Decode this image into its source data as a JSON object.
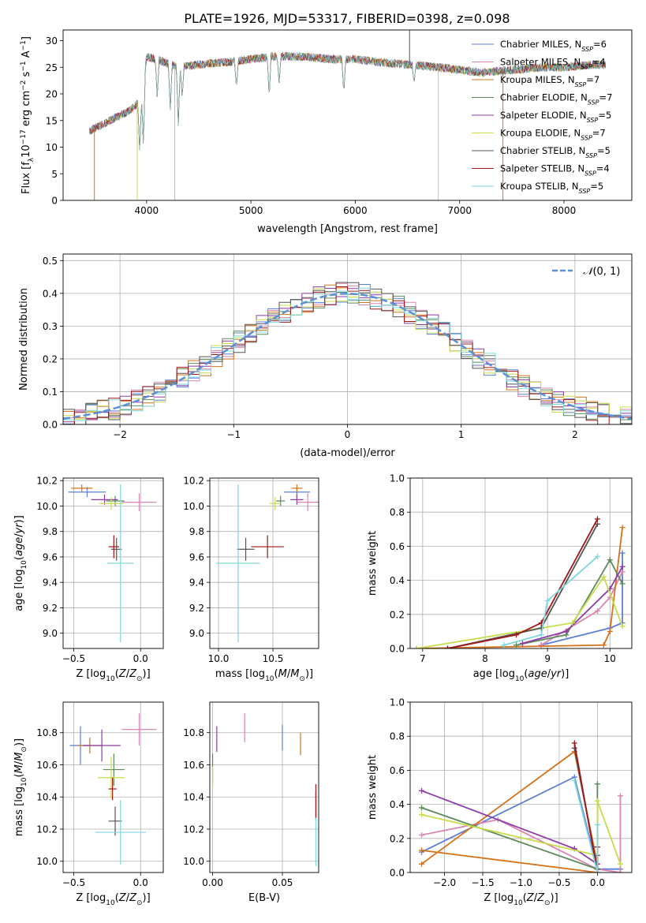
{
  "figure": {
    "title": "PLATE=1926, MJD=53317, FIBERID=0398, z=0.098"
  },
  "colors": {
    "Chabrier MILES": "#5b7fd6",
    "Salpeter MILES": "#d986b4",
    "Kroupa MILES": "#d4731c",
    "Chabrier ELODIE": "#5a8a5a",
    "Salpeter ELODIE": "#8e3ba8",
    "Kroupa ELODIE": "#c8dc4a",
    "Chabrier STELIB": "#555555",
    "Salpeter STELIB": "#a01616",
    "Kroupa STELIB": "#7dd6dc",
    "normal_curve": "#5b8fd6"
  },
  "chart_data": [
    {
      "id": "spectrum",
      "type": "line",
      "xlabel": "wavelength [Angstrom, rest frame]",
      "ylabel": "Flux [f_λ 10^-17 erg cm^-2 s^-1 A^-1]",
      "xlim": [
        3200,
        8650
      ],
      "ylim": [
        0,
        32
      ],
      "xticks": [
        4000,
        5000,
        6000,
        7000,
        8000
      ],
      "yticks": [
        0,
        5,
        10,
        15,
        20,
        25,
        30
      ],
      "grid": false,
      "legend_position": "top-right",
      "legend": [
        {
          "name": "Chabrier MILES",
          "nssp": "6"
        },
        {
          "name": "Salpeter MILES",
          "nssp": "4"
        },
        {
          "name": "Kroupa MILES",
          "nssp": "7"
        },
        {
          "name": "Chabrier ELODIE",
          "nssp": "7"
        },
        {
          "name": "Salpeter ELODIE",
          "nssp": "5"
        },
        {
          "name": "Kroupa ELODIE",
          "nssp": "7"
        },
        {
          "name": "Chabrier STELIB",
          "nssp": "5"
        },
        {
          "name": "Salpeter STELIB",
          "nssp": "4"
        },
        {
          "name": "Kroupa STELIB",
          "nssp": "5"
        }
      ],
      "continuum": {
        "x": [
          3450,
          3550,
          3650,
          3750,
          3850,
          3950,
          4000,
          4100,
          4300,
          4500,
          4800,
          5000,
          5200,
          5500,
          5800,
          6000,
          6200,
          6500,
          6800,
          7000,
          7200,
          7500,
          7800,
          8000,
          8300
        ],
        "y": [
          13,
          14,
          15,
          16,
          17,
          19,
          27,
          26.5,
          25,
          25.5,
          26,
          26.5,
          27,
          27,
          26.5,
          26.5,
          26,
          25.5,
          25,
          24.5,
          24,
          24.5,
          25,
          25,
          25.5
        ]
      },
      "absorption_lines": [
        {
          "x": 3934,
          "y": 9
        },
        {
          "x": 3969,
          "y": 10
        },
        {
          "x": 4102,
          "y": 19
        },
        {
          "x": 4227,
          "y": 17
        },
        {
          "x": 4304,
          "y": 14
        },
        {
          "x": 4341,
          "y": 19
        },
        {
          "x": 4861,
          "y": 21
        },
        {
          "x": 5175,
          "y": 19
        },
        {
          "x": 5270,
          "y": 22
        },
        {
          "x": 5890,
          "y": 20
        },
        {
          "x": 6563,
          "y": 22
        },
        {
          "x": 8500,
          "y": 23
        }
      ],
      "spikes": [
        {
          "x": 3500,
          "series": "Kroupa MILES",
          "y": 0
        },
        {
          "x": 3910,
          "series": "Kroupa ELODIE",
          "y": 0
        },
        {
          "x": 4270,
          "series": "Kroupa STELIB",
          "y": 0
        },
        {
          "x": 6795,
          "series": "Kroupa ELODIE",
          "y": 0
        },
        {
          "x": 7415,
          "series": "Kroupa MILES",
          "y": 0
        },
        {
          "x": 6520,
          "series": "Chabrier STELIB",
          "y": 32
        }
      ]
    },
    {
      "id": "residuals",
      "type": "line",
      "xlabel": "(data-model)/error",
      "ylabel": "Normed distribution",
      "xlim": [
        -2.5,
        2.5
      ],
      "ylim": [
        0,
        0.52
      ],
      "xticks": [
        -2,
        -1,
        0,
        1,
        2
      ],
      "yticks": [
        0.0,
        0.1,
        0.2,
        0.3,
        0.4,
        0.5
      ],
      "grid": true,
      "legend_position": "top-right",
      "legend": [
        "N(0,1)"
      ],
      "mu": 0,
      "sigma": 1,
      "bin_width": 0.1,
      "jitter": 0.035
    },
    {
      "id": "age-vs-Z",
      "type": "scatter",
      "xlabel": "Z [log10(Z/Z_sun)]",
      "ylabel": "age [log10(age/yr)]",
      "xlim": [
        -0.58,
        0.17
      ],
      "ylim": [
        8.88,
        10.22
      ],
      "xticks": [
        -0.5,
        0.0
      ],
      "yticks": [
        9.0,
        9.2,
        9.4,
        9.6,
        9.8,
        10.0,
        10.2
      ],
      "grid": true,
      "points": [
        {
          "series": "Chabrier MILES",
          "x": -0.4,
          "xerr": 0.14,
          "y": 10.11,
          "yerr": 0.04
        },
        {
          "series": "Salpeter MILES",
          "x": -0.01,
          "xerr": 0.13,
          "y": 10.03,
          "yerr": 0.07
        },
        {
          "series": "Kroupa MILES",
          "x": -0.44,
          "xerr": 0.08,
          "y": 10.14,
          "yerr": 0.03
        },
        {
          "series": "Chabrier ELODIE",
          "x": -0.19,
          "xerr": 0.07,
          "y": 10.04,
          "yerr": 0.04
        },
        {
          "series": "Salpeter ELODIE",
          "x": -0.27,
          "xerr": 0.1,
          "y": 10.05,
          "yerr": 0.04
        },
        {
          "series": "Kroupa ELODIE",
          "x": -0.22,
          "xerr": 0.09,
          "y": 10.02,
          "yerr": 0.05
        },
        {
          "series": "Chabrier STELIB",
          "x": -0.18,
          "xerr": 0.04,
          "y": 9.66,
          "yerr": 0.09
        },
        {
          "series": "Salpeter STELIB",
          "x": -0.2,
          "xerr": 0.04,
          "y": 9.68,
          "yerr": 0.09
        },
        {
          "series": "Kroupa STELIB",
          "x": -0.15,
          "xerr": 0.1,
          "y": 9.55,
          "yerr": 0.62
        }
      ]
    },
    {
      "id": "age-vs-mass",
      "type": "scatter",
      "xlabel": "mass [log10(M/M_sun)]",
      "ylabel": "",
      "xlim": [
        9.92,
        10.92
      ],
      "ylim": [
        8.88,
        10.22
      ],
      "xticks": [
        10.0,
        10.5
      ],
      "yticks": [
        9.0,
        9.2,
        9.4,
        9.6,
        9.8,
        10.0,
        10.2
      ],
      "grid": true,
      "points": [
        {
          "series": "Chabrier MILES",
          "x": 10.72,
          "xerr": 0.12,
          "y": 10.11,
          "yerr": 0.04
        },
        {
          "series": "Salpeter MILES",
          "x": 10.82,
          "xerr": 0.1,
          "y": 10.03,
          "yerr": 0.07
        },
        {
          "series": "Kroupa MILES",
          "x": 10.72,
          "xerr": 0.05,
          "y": 10.14,
          "yerr": 0.03
        },
        {
          "series": "Chabrier ELODIE",
          "x": 10.57,
          "xerr": 0.04,
          "y": 10.04,
          "yerr": 0.04
        },
        {
          "series": "Salpeter ELODIE",
          "x": 10.72,
          "xerr": 0.06,
          "y": 10.05,
          "yerr": 0.04
        },
        {
          "series": "Kroupa ELODIE",
          "x": 10.52,
          "xerr": 0.05,
          "y": 10.02,
          "yerr": 0.05
        },
        {
          "series": "Chabrier STELIB",
          "x": 10.25,
          "xerr": 0.08,
          "y": 9.66,
          "yerr": 0.09
        },
        {
          "series": "Salpeter STELIB",
          "x": 10.45,
          "xerr": 0.15,
          "y": 9.68,
          "yerr": 0.09
        },
        {
          "series": "Kroupa STELIB",
          "x": 10.18,
          "xerr": 0.2,
          "y": 9.55,
          "yerr": 0.62
        }
      ]
    },
    {
      "id": "cumulative-age",
      "type": "line",
      "xlabel": "age [log10(age/yr)]",
      "ylabel": "mass weight",
      "xlim": [
        6.8,
        10.35
      ],
      "ylim": [
        0,
        1.0
      ],
      "xticks": [
        7,
        8,
        9,
        10
      ],
      "yticks": [
        0.0,
        0.2,
        0.4,
        0.6,
        0.8,
        1.0
      ],
      "grid": true,
      "series": [
        {
          "name": "Chabrier MILES",
          "x": [
            8.9,
            10.0,
            10.2,
            10.2
          ],
          "y": [
            0.02,
            0.12,
            0.15,
            0.56
          ]
        },
        {
          "name": "Salpeter MILES",
          "x": [
            8.9,
            9.8,
            10.0,
            10.2
          ],
          "y": [
            0.02,
            0.22,
            0.3,
            0.45
          ]
        },
        {
          "name": "Kroupa MILES",
          "x": [
            6.9,
            9.9,
            10.0,
            10.2
          ],
          "y": [
            0.0,
            0.02,
            0.1,
            0.71
          ]
        },
        {
          "name": "Chabrier ELODIE",
          "x": [
            8.5,
            9.3,
            10.0,
            10.2
          ],
          "y": [
            0.02,
            0.08,
            0.52,
            0.38
          ]
        },
        {
          "name": "Salpeter ELODIE",
          "x": [
            8.6,
            9.3,
            10.0,
            10.2
          ],
          "y": [
            0.03,
            0.1,
            0.35,
            0.48
          ]
        },
        {
          "name": "Kroupa ELODIE",
          "x": [
            6.9,
            9.4,
            9.9,
            10.2
          ],
          "y": [
            0.0,
            0.15,
            0.42,
            0.13
          ]
        },
        {
          "name": "Chabrier STELIB",
          "x": [
            7.4,
            8.9,
            9.8
          ],
          "y": [
            0.0,
            0.12,
            0.73
          ]
        },
        {
          "name": "Salpeter STELIB",
          "x": [
            7.4,
            8.5,
            8.9,
            9.8
          ],
          "y": [
            0.0,
            0.08,
            0.15,
            0.76
          ]
        },
        {
          "name": "Kroupa STELIB",
          "x": [
            8.3,
            8.9,
            9.0,
            9.8
          ],
          "y": [
            0.02,
            0.08,
            0.28,
            0.54
          ]
        }
      ]
    },
    {
      "id": "mass-vs-Z",
      "type": "scatter",
      "xlabel": "Z [log10(Z/Z_sun)]",
      "ylabel": "mass [log10(M/M_sun)]",
      "xlim": [
        -0.58,
        0.17
      ],
      "ylim": [
        9.93,
        10.99
      ],
      "xticks": [
        -0.5,
        0.0
      ],
      "yticks": [
        10.0,
        10.2,
        10.4,
        10.6,
        10.8
      ],
      "grid": true,
      "points": [
        {
          "series": "Chabrier MILES",
          "x": -0.45,
          "xerr": 0.08,
          "y": 10.72,
          "yerr": 0.12
        },
        {
          "series": "Salpeter MILES",
          "x": -0.01,
          "xerr": 0.13,
          "y": 10.82,
          "yerr": 0.1
        },
        {
          "series": "Kroupa MILES",
          "x": -0.38,
          "xerr": 0.09,
          "y": 10.72,
          "yerr": 0.05
        },
        {
          "series": "Chabrier ELODIE",
          "x": -0.2,
          "xerr": 0.08,
          "y": 10.57,
          "yerr": 0.1
        },
        {
          "series": "Salpeter ELODIE",
          "x": -0.29,
          "xerr": 0.14,
          "y": 10.72,
          "yerr": 0.1
        },
        {
          "series": "Kroupa ELODIE",
          "x": -0.22,
          "xerr": 0.1,
          "y": 10.52,
          "yerr": 0.13
        },
        {
          "series": "Chabrier STELIB",
          "x": -0.19,
          "xerr": 0.05,
          "y": 10.25,
          "yerr": 0.09
        },
        {
          "series": "Salpeter STELIB",
          "x": -0.21,
          "xerr": 0.03,
          "y": 10.45,
          "yerr": 0.07
        },
        {
          "series": "Kroupa STELIB",
          "x": -0.15,
          "xerr": 0.19,
          "y": 10.18,
          "yerr": 0.2
        }
      ]
    },
    {
      "id": "mass-vs-EBV",
      "type": "scatter",
      "xlabel": "E(B-V)",
      "ylabel": "",
      "xlim": [
        -0.002,
        0.076
      ],
      "ylim": [
        9.93,
        10.99
      ],
      "xticks": [
        0.0,
        0.05
      ],
      "yticks": [
        10.0,
        10.2,
        10.4,
        10.6,
        10.8
      ],
      "grid": true,
      "points": [
        {
          "series": "Chabrier MILES",
          "x": 0.05,
          "xerr": 0,
          "y": 10.77,
          "yerr": 0.08
        },
        {
          "series": "Salpeter MILES",
          "x": 0.023,
          "xerr": 0,
          "y": 10.83,
          "yerr": 0.09
        },
        {
          "series": "Kroupa MILES",
          "x": 0.063,
          "xerr": 0,
          "y": 10.73,
          "yerr": 0.07
        },
        {
          "series": "Chabrier ELODIE",
          "x": 0.0,
          "xerr": 0,
          "y": 10.57,
          "yerr": 0.1
        },
        {
          "series": "Salpeter ELODIE",
          "x": 0.003,
          "xerr": 0,
          "y": 10.76,
          "yerr": 0.08
        },
        {
          "series": "Kroupa ELODIE",
          "x": 0.0,
          "xerr": 0,
          "y": 10.52,
          "yerr": 0.07
        },
        {
          "series": "Chabrier STELIB",
          "x": 0.074,
          "xerr": 0,
          "y": 10.35,
          "yerr": 0.08
        },
        {
          "series": "Salpeter STELIB",
          "x": 0.074,
          "xerr": 0,
          "y": 10.37,
          "yerr": 0.11
        },
        {
          "series": "Kroupa STELIB",
          "x": 0.074,
          "xerr": 0,
          "y": 10.12,
          "yerr": 0.15
        }
      ]
    },
    {
      "id": "cumulative-Z",
      "type": "line",
      "xlabel": "Z [log10(Z/Z_sun)]",
      "ylabel": "mass weight",
      "xlim": [
        -2.45,
        0.45
      ],
      "ylim": [
        0,
        1.0
      ],
      "xticks": [
        -2.0,
        -1.5,
        -1.0,
        -0.5,
        0.0
      ],
      "yticks": [
        0.0,
        0.2,
        0.4,
        0.6,
        0.8,
        1.0
      ],
      "grid": true,
      "series": [
        {
          "name": "Chabrier MILES",
          "x": [
            -2.3,
            -0.3,
            0.0,
            0.3
          ],
          "y": [
            0.12,
            0.56,
            0.02,
            0.02
          ]
        },
        {
          "name": "Salpeter MILES",
          "x": [
            -2.3,
            -1.3,
            0.0,
            0.3,
            0.3
          ],
          "y": [
            0.22,
            0.31,
            0.02,
            0.0,
            0.45
          ]
        },
        {
          "name": "Kroupa MILES",
          "x": [
            -2.3,
            -0.3,
            0.0,
            0.0,
            -2.3
          ],
          "y": [
            0.05,
            0.71,
            0.05,
            0.0,
            0.13
          ]
        },
        {
          "name": "Chabrier ELODIE",
          "x": [
            -2.3,
            0.0,
            0.0,
            0.0
          ],
          "y": [
            0.38,
            0.02,
            0.52,
            0.0
          ]
        },
        {
          "name": "Salpeter ELODIE",
          "x": [
            -2.3,
            -0.3,
            0.0
          ],
          "y": [
            0.48,
            0.14,
            0.05
          ]
        },
        {
          "name": "Kroupa ELODIE",
          "x": [
            -2.3,
            0.0,
            0.0,
            0.3
          ],
          "y": [
            0.34,
            0.1,
            0.42,
            0.05
          ]
        },
        {
          "name": "Chabrier STELIB",
          "x": [
            -0.3,
            0.0,
            0.0
          ],
          "y": [
            0.73,
            0.02,
            0.1
          ]
        },
        {
          "name": "Salpeter STELIB",
          "x": [
            -0.3,
            0.0,
            0.0
          ],
          "y": [
            0.76,
            0.0,
            0.15
          ]
        },
        {
          "name": "Kroupa STELIB",
          "x": [
            -0.3,
            0.0,
            0.0
          ],
          "y": [
            0.54,
            0.0,
            0.28
          ]
        }
      ]
    }
  ]
}
